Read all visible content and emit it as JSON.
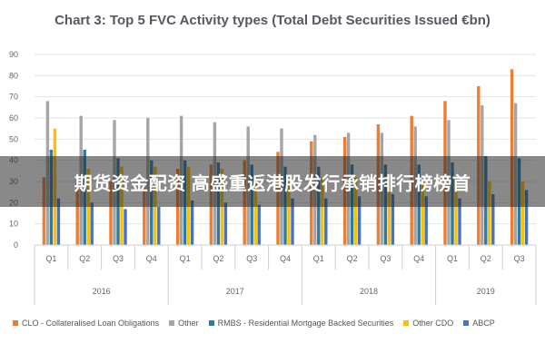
{
  "chart_data": {
    "type": "bar",
    "title": "Chart 3: Top 5 FVC Activity types (Total Debt Securities Issued €bn)",
    "xlabel": "",
    "ylabel": "",
    "ylim": [
      0,
      90
    ],
    "yticks": [
      0,
      10,
      20,
      30,
      40,
      50,
      60,
      70,
      80,
      90
    ],
    "grid": true,
    "legend_position": "bottom",
    "categories": [
      "Q1",
      "Q2",
      "Q3",
      "Q4",
      "Q1",
      "Q2",
      "Q3",
      "Q4",
      "Q1",
      "Q2",
      "Q3",
      "Q4",
      "Q1",
      "Q2",
      "Q3"
    ],
    "groups": [
      {
        "label": "2016",
        "count": 4
      },
      {
        "label": "2017",
        "count": 4
      },
      {
        "label": "2018",
        "count": 4
      },
      {
        "label": "2019",
        "count": 3
      }
    ],
    "series": [
      {
        "name": "CLO - Collateralised Loan Obligations",
        "color": "#ed7d31",
        "values": [
          32,
          31,
          30,
          29,
          36,
          38,
          40,
          44,
          49,
          51,
          57,
          61,
          68,
          75,
          83
        ]
      },
      {
        "name": "Other",
        "color": "#a5a5a5",
        "values": [
          68,
          61,
          59,
          60,
          61,
          58,
          56,
          55,
          52,
          53,
          53,
          56,
          59,
          66,
          67
        ]
      },
      {
        "name": "RMBS - Residential Mortgage Backed Securities",
        "color": "#2a7ca8",
        "values": [
          45,
          45,
          41,
          40,
          40,
          39,
          38,
          37,
          37,
          38,
          38,
          38,
          39,
          42,
          41
        ]
      },
      {
        "name": "Other CDO",
        "color": "#ffc000",
        "values": [
          55,
          36,
          37,
          37,
          37,
          36,
          33,
          31,
          32,
          32,
          31,
          31,
          30,
          30,
          30
        ]
      },
      {
        "name": "ABCP",
        "color": "#4472c4",
        "values": [
          22,
          20,
          17,
          18,
          21,
          20,
          19,
          22,
          22,
          23,
          24,
          23,
          22,
          24,
          26
        ]
      }
    ]
  },
  "overlay_text": "期货资金配资 高盛重返港股发行承销排行榜榜首"
}
